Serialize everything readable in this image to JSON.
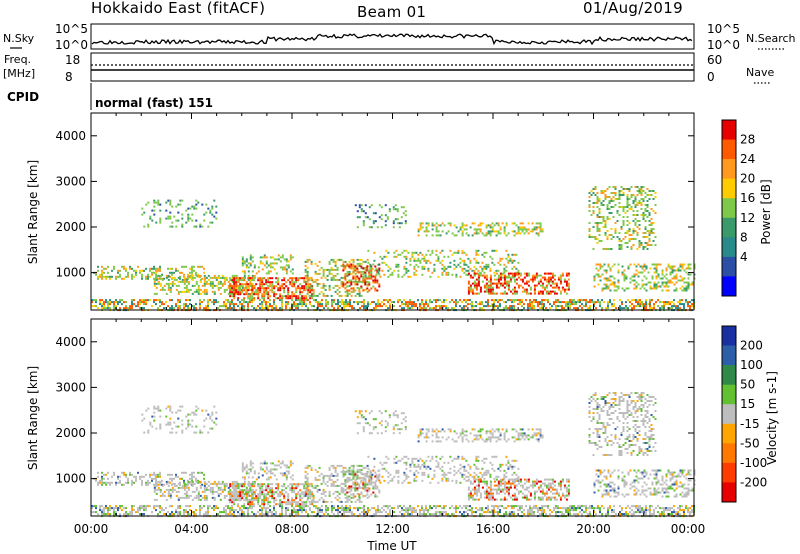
{
  "header": {
    "title": "Hokkaido East (fitACF)",
    "beam": "Beam 01",
    "date": "01/Aug/2019"
  },
  "noise_panel": {
    "left_label": "N.Sky",
    "right_label": "N.Search",
    "left_ticks": [
      "10^5",
      "10^0"
    ],
    "right_ticks": [
      "10^5",
      "10^0"
    ]
  },
  "freq_panel": {
    "left_label": "Freq.",
    "left_unit": "[MHz]",
    "right_label": "Nave",
    "left_ticks": [
      "18",
      "8"
    ],
    "right_ticks": [
      "60",
      "0"
    ]
  },
  "cpid_panel": {
    "label": "CPID",
    "value": "normal (fast) 151"
  },
  "x_axis": {
    "label": "Time UT",
    "ticks": [
      "00:00",
      "04:00",
      "08:00",
      "12:00",
      "16:00",
      "20:00",
      "00:00"
    ]
  },
  "chart_data": [
    {
      "type": "heatmap",
      "quantity": "Power",
      "ylabel": "Slant Range [km]",
      "yticks": [
        1000,
        2000,
        3000,
        4000
      ],
      "ylim": [
        180,
        4500
      ],
      "xlim_hours": [
        0,
        24
      ],
      "colorbar_label": "Power [dB]",
      "colorbar_ticks": [
        "28",
        "24",
        "20",
        "16",
        "12",
        "8",
        "4"
      ],
      "colorbar_colors": [
        "#e60000",
        "#ff5a00",
        "#ff9a1f",
        "#ffcc00",
        "#7ec84a",
        "#3a9a6a",
        "#2a8a8a",
        "#2c4fa6",
        "#0000ff"
      ]
    },
    {
      "type": "heatmap",
      "quantity": "Velocity",
      "ylabel": "Slant Range [km]",
      "yticks": [
        1000,
        2000,
        3000,
        4000
      ],
      "ylim": [
        180,
        4500
      ],
      "xlim_hours": [
        0,
        24
      ],
      "colorbar_label": "Velocity [m s-1]",
      "colorbar_ticks": [
        "200",
        "100",
        "50",
        "15",
        "-15",
        "-50",
        "-100",
        "-200"
      ],
      "colorbar_colors": [
        "#1a2fa0",
        "#2c5fa8",
        "#2f8a4a",
        "#62c032",
        "#bdbdbd",
        "#ffa500",
        "#ff7800",
        "#ff3c00",
        "#e60000"
      ]
    }
  ]
}
